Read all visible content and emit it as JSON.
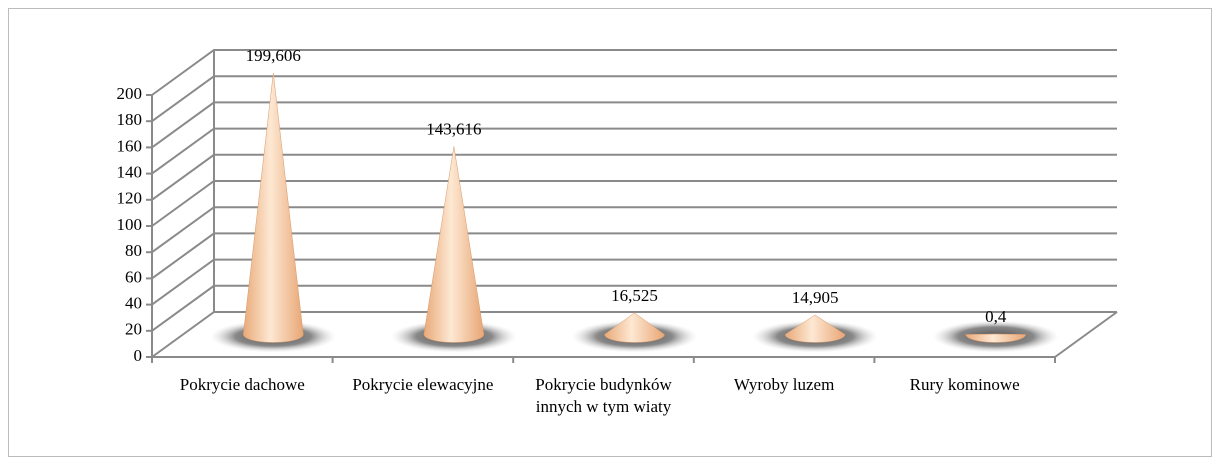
{
  "chart_data": {
    "type": "cone",
    "categories": [
      "Pokrycie dachowe",
      "Pokrycie elewacyjne",
      "Pokrycie budynków innych w tym wiaty",
      "Wyroby luzem",
      "Rury kominowe"
    ],
    "values": [
      199.606,
      143.616,
      16.525,
      14.905,
      0.4
    ],
    "value_labels": [
      "199,606",
      "143,616",
      "16,525",
      "14,905",
      "0,4"
    ],
    "color": "#f4c49c",
    "ylim": [
      0,
      200
    ],
    "yticks": [
      0,
      20,
      40,
      60,
      80,
      100,
      120,
      140,
      160,
      180,
      200
    ],
    "grid": true
  }
}
